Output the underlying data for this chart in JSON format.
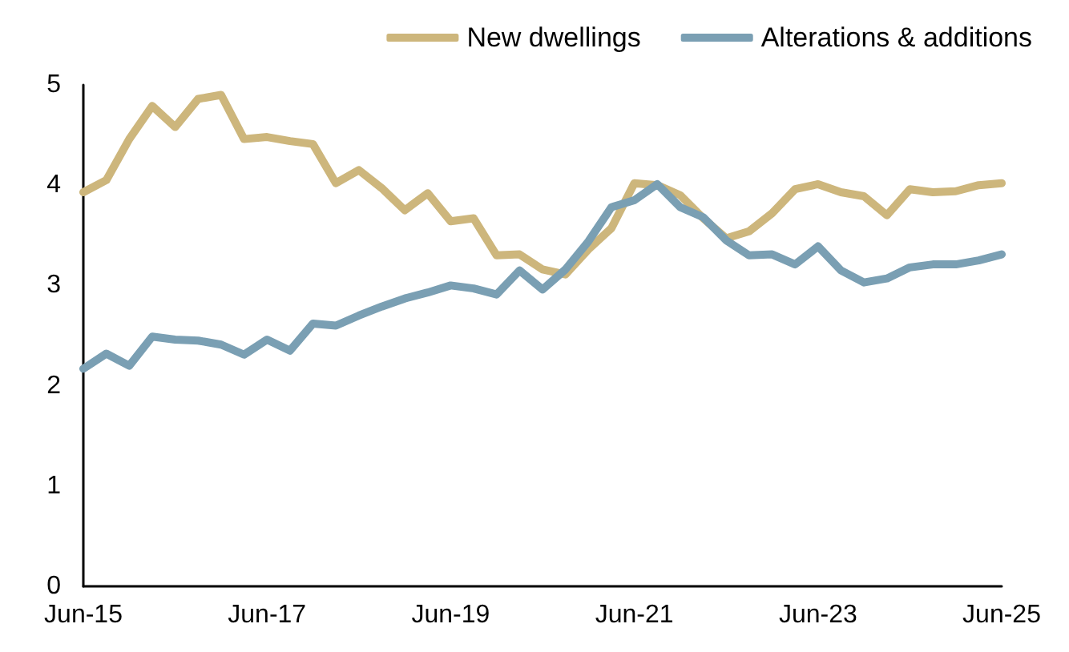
{
  "chart_data": {
    "type": "line",
    "categories": [
      "Jun-15",
      null,
      null,
      null,
      null,
      null,
      null,
      null,
      "Jun-17",
      null,
      null,
      null,
      null,
      null,
      null,
      null,
      "Jun-19",
      null,
      null,
      null,
      null,
      null,
      null,
      null,
      "Jun-21",
      null,
      null,
      null,
      null,
      null,
      null,
      null,
      "Jun-23",
      null,
      null,
      null,
      null,
      null,
      null,
      null,
      "Jun-25"
    ],
    "series": [
      {
        "name": "New dwellings",
        "color": "#cdb67c",
        "values": [
          3.93,
          4.05,
          4.46,
          4.79,
          4.58,
          4.86,
          4.9,
          4.46,
          4.48,
          4.44,
          4.41,
          4.02,
          4.15,
          3.97,
          3.75,
          3.92,
          3.64,
          3.67,
          3.3,
          3.31,
          3.16,
          3.11,
          3.36,
          3.57,
          4.02,
          4.0,
          3.9,
          3.67,
          3.47,
          3.54,
          3.72,
          3.96,
          4.01,
          3.93,
          3.89,
          3.7,
          3.96,
          3.93,
          3.94,
          4.0,
          4.02
        ]
      },
      {
        "name": "Alterations & additions",
        "color": "#7a9fb3",
        "values": [
          2.17,
          2.32,
          2.2,
          2.49,
          2.46,
          2.45,
          2.41,
          2.31,
          2.46,
          2.35,
          2.62,
          2.6,
          2.7,
          2.79,
          2.87,
          2.93,
          3.0,
          2.97,
          2.91,
          3.15,
          2.96,
          3.16,
          3.44,
          3.78,
          3.85,
          4.01,
          3.78,
          3.68,
          3.45,
          3.3,
          3.31,
          3.21,
          3.39,
          3.15,
          3.03,
          3.07,
          3.18,
          3.21,
          3.21,
          3.25,
          3.31
        ]
      }
    ],
    "ylim": [
      0,
      5
    ],
    "yticks": [
      0,
      1,
      2,
      3,
      4,
      5
    ],
    "grid": false,
    "legend": "top right",
    "marker": "none",
    "line_style": "solid"
  }
}
